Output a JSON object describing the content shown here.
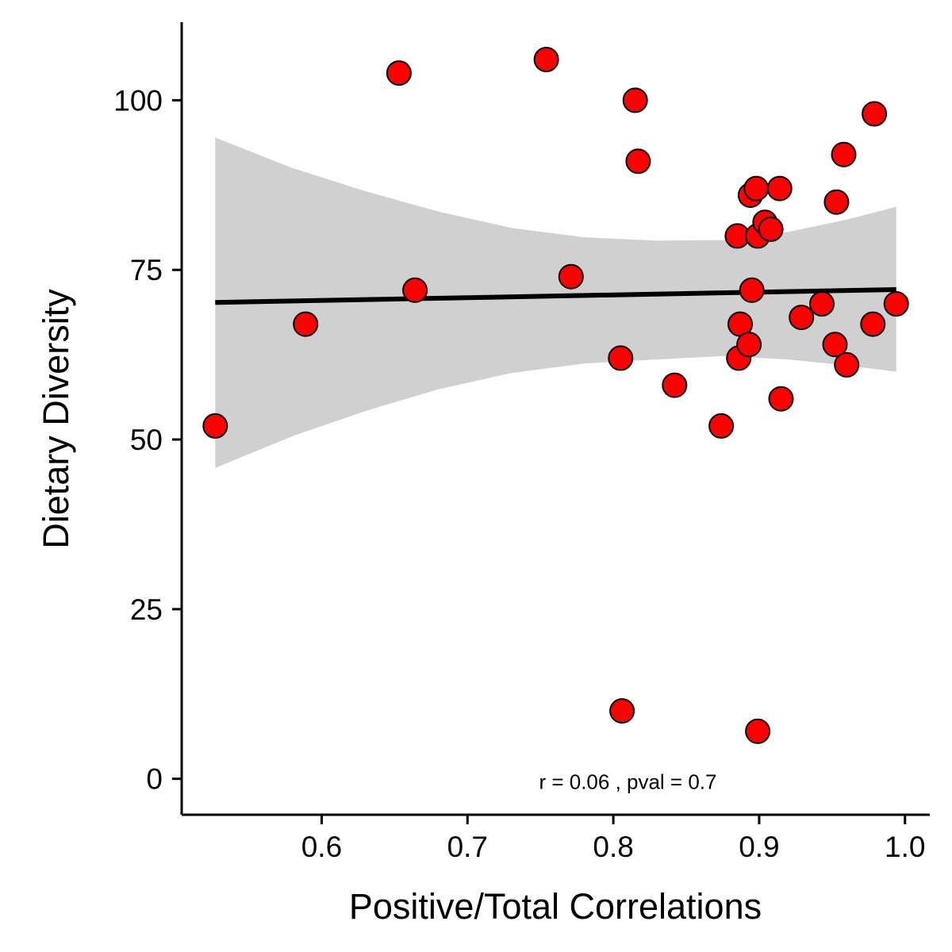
{
  "chart_data": {
    "type": "scatter",
    "xlabel": "Positive/Total Correlations",
    "ylabel": "Dietary Diversity",
    "xlim": [
      0.504,
      1.017
    ],
    "ylim": [
      -5.3,
      111.5
    ],
    "xticks": [
      "0.6",
      "0.7",
      "0.8",
      "0.9",
      "1.0"
    ],
    "xtick_values": [
      0.6,
      0.7,
      0.8,
      0.9,
      1.0
    ],
    "yticks": [
      "0",
      "25",
      "50",
      "75",
      "100"
    ],
    "ytick_values": [
      0,
      25,
      50,
      75,
      100
    ],
    "grid": false,
    "point_color": "#ff0000",
    "point_edge_color": "#000000",
    "band_color": "#d0d0d0",
    "line_color": "#000000",
    "annotation": "r = 0.06 , pval = 0.7",
    "annotation_pos": [
      0.81,
      0
    ],
    "fit": {
      "x": [
        0.527,
        0.994
      ],
      "y": [
        70.2,
        72.1
      ],
      "band": {
        "x": [
          0.527,
          0.58,
          0.63,
          0.68,
          0.73,
          0.78,
          0.83,
          0.875,
          0.92,
          0.96,
          0.994
        ],
        "upper": [
          94.5,
          90.0,
          86.6,
          83.6,
          81.2,
          79.8,
          79.3,
          79.4,
          80.6,
          82.4,
          84.3
        ],
        "lower": [
          45.8,
          50.5,
          54.2,
          57.4,
          59.8,
          61.2,
          61.8,
          62.3,
          61.8,
          60.9,
          60.0
        ]
      }
    },
    "points": [
      {
        "x": 0.527,
        "y": 52
      },
      {
        "x": 0.589,
        "y": 67
      },
      {
        "x": 0.653,
        "y": 104
      },
      {
        "x": 0.664,
        "y": 72
      },
      {
        "x": 0.754,
        "y": 106
      },
      {
        "x": 0.771,
        "y": 74
      },
      {
        "x": 0.805,
        "y": 62
      },
      {
        "x": 0.806,
        "y": 10
      },
      {
        "x": 0.815,
        "y": 100
      },
      {
        "x": 0.817,
        "y": 91
      },
      {
        "x": 0.842,
        "y": 58
      },
      {
        "x": 0.874,
        "y": 52
      },
      {
        "x": 0.885,
        "y": 80
      },
      {
        "x": 0.886,
        "y": 62
      },
      {
        "x": 0.887,
        "y": 67
      },
      {
        "x": 0.893,
        "y": 64
      },
      {
        "x": 0.894,
        "y": 86
      },
      {
        "x": 0.895,
        "y": 72
      },
      {
        "x": 0.898,
        "y": 87
      },
      {
        "x": 0.899,
        "y": 80
      },
      {
        "x": 0.899,
        "y": 7
      },
      {
        "x": 0.904,
        "y": 82
      },
      {
        "x": 0.908,
        "y": 81
      },
      {
        "x": 0.914,
        "y": 87
      },
      {
        "x": 0.915,
        "y": 56
      },
      {
        "x": 0.929,
        "y": 68
      },
      {
        "x": 0.943,
        "y": 70
      },
      {
        "x": 0.952,
        "y": 64
      },
      {
        "x": 0.953,
        "y": 85
      },
      {
        "x": 0.958,
        "y": 92
      },
      {
        "x": 0.96,
        "y": 61
      },
      {
        "x": 0.978,
        "y": 67
      },
      {
        "x": 0.979,
        "y": 98
      },
      {
        "x": 0.994,
        "y": 70
      }
    ]
  }
}
